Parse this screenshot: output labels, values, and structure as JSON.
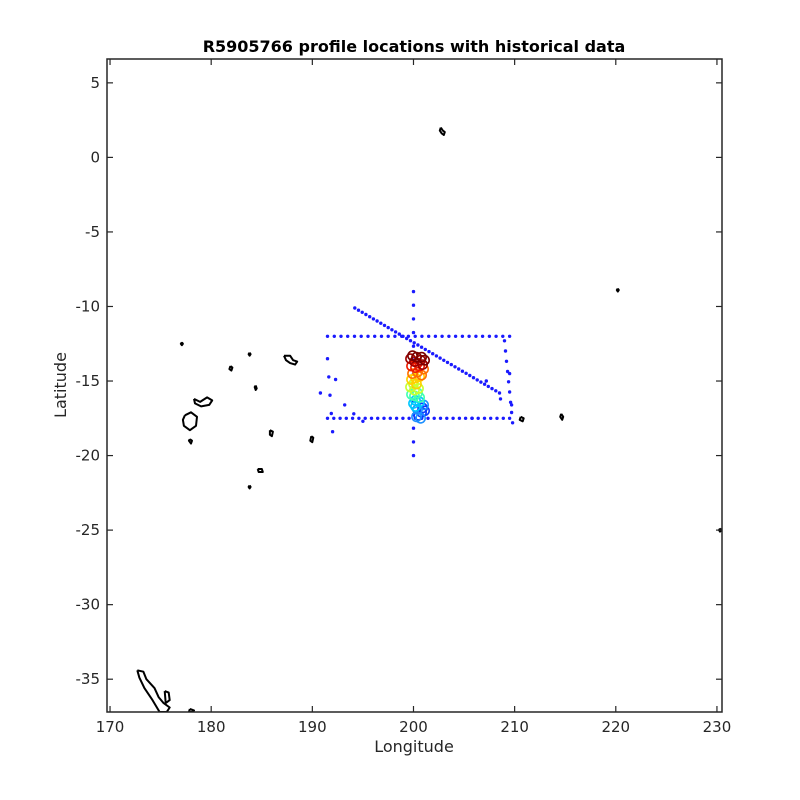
{
  "chart_data": {
    "type": "scatter",
    "title": "R5905766 profile locations with historical data",
    "xlabel": "Longitude",
    "ylabel": "Latitude",
    "xlim": [
      169.7,
      230.5
    ],
    "ylim": [
      -37.2,
      6.6
    ],
    "xticks": [
      170,
      180,
      190,
      200,
      210,
      220,
      230
    ],
    "yticks": [
      5,
      0,
      -5,
      -10,
      -15,
      -20,
      -25,
      -30,
      -35
    ],
    "grid": false,
    "legend": "none",
    "colors": {
      "axes": "#262626",
      "coastline": "#000000",
      "historical": "#1a1aff",
      "profile_ramp": [
        "#0a3cff",
        "#1e90ff",
        "#00c8ff",
        "#40ffb0",
        "#c8ff30",
        "#ffd000",
        "#ff7000",
        "#ee1c00",
        "#a00000",
        "#7a0000"
      ]
    },
    "historical_lines": [
      {
        "name": "",
        "x_range": [
          191.5,
          209.5
        ],
        "y": -12.0,
        "count": 28
      },
      {
        "name": "",
        "x_range": [
          191.5,
          209.5
        ],
        "y": -17.5,
        "count": 30
      },
      {
        "name": "",
        "x": 200.0,
        "y_range": [
          -20.0,
          -9.0
        ],
        "count": 13
      },
      {
        "name": "",
        "start": [
          194.2,
          -10.1
        ],
        "end": [
          208.5,
          -15.8
        ],
        "count": 40
      },
      {
        "name": "",
        "start": [
          209.0,
          -12.3
        ],
        "end": [
          209.8,
          -17.8
        ],
        "count": 9
      },
      {
        "name": "",
        "start": [
          191.5,
          -13.5
        ],
        "end": [
          192.0,
          -18.4
        ],
        "count": 5
      }
    ],
    "historical_points": [
      [
        190.8,
        -15.8
      ],
      [
        193.2,
        -16.6
      ],
      [
        194.1,
        -17.2
      ],
      [
        195.0,
        -17.7
      ],
      [
        192.3,
        -14.9
      ],
      [
        205.8,
        -17.5
      ],
      [
        207.2,
        -15.0
      ],
      [
        209.5,
        -14.5
      ],
      [
        209.7,
        -16.6
      ],
      [
        208.6,
        -16.2
      ]
    ],
    "profiles": [
      [
        200.8,
        -17.1
      ],
      [
        200.9,
        -16.8
      ],
      [
        200.5,
        -17.3
      ],
      [
        201.1,
        -17.0
      ],
      [
        200.3,
        -17.4
      ],
      [
        200.4,
        -16.9
      ],
      [
        200.7,
        -17.5
      ],
      [
        201.0,
        -16.6
      ],
      [
        200.2,
        -16.7
      ],
      [
        200.6,
        -16.4
      ],
      [
        200.0,
        -16.5
      ],
      [
        200.2,
        -16.3
      ],
      [
        200.6,
        -16.1
      ],
      [
        200.1,
        -16.0
      ],
      [
        200.4,
        -15.8
      ],
      [
        199.8,
        -15.9
      ],
      [
        200.1,
        -15.6
      ],
      [
        200.5,
        -15.5
      ],
      [
        199.7,
        -15.4
      ],
      [
        200.0,
        -15.2
      ],
      [
        200.3,
        -15.2
      ],
      [
        199.8,
        -14.9
      ],
      [
        200.2,
        -14.8
      ],
      [
        200.6,
        -14.7
      ],
      [
        199.9,
        -14.5
      ],
      [
        200.4,
        -14.4
      ],
      [
        200.8,
        -14.6
      ],
      [
        201.0,
        -14.2
      ],
      [
        200.2,
        -14.1
      ],
      [
        200.6,
        -14.0
      ],
      [
        199.8,
        -14.0
      ],
      [
        200.4,
        -13.8
      ],
      [
        200.9,
        -13.9
      ],
      [
        200.1,
        -13.7
      ],
      [
        200.7,
        -13.6
      ],
      [
        199.7,
        -13.5
      ],
      [
        200.3,
        -13.4
      ],
      [
        201.1,
        -13.6
      ],
      [
        200.8,
        -13.4
      ],
      [
        199.9,
        -13.3
      ]
    ],
    "coastlines": [
      [
        [
          202.7,
          2.0
        ],
        [
          202.9,
          1.8
        ],
        [
          203.1,
          1.7
        ],
        [
          203.0,
          1.5
        ],
        [
          202.8,
          1.6
        ],
        [
          202.6,
          1.8
        ],
        [
          202.7,
          2.0
        ]
      ],
      [
        [
          220.2,
          -8.8
        ],
        [
          220.3,
          -8.9
        ],
        [
          220.2,
          -9.0
        ],
        [
          220.1,
          -8.9
        ],
        [
          220.2,
          -8.8
        ]
      ],
      [
        [
          177.1,
          -12.4
        ],
        [
          177.2,
          -12.5
        ],
        [
          177.1,
          -12.6
        ],
        [
          177.0,
          -12.5
        ],
        [
          177.1,
          -12.4
        ]
      ],
      [
        [
          183.8,
          -13.1
        ],
        [
          183.9,
          -13.2
        ],
        [
          183.8,
          -13.3
        ],
        [
          183.7,
          -13.2
        ],
        [
          183.8,
          -13.1
        ]
      ],
      [
        [
          187.2,
          -13.3
        ],
        [
          187.8,
          -13.3
        ],
        [
          188.1,
          -13.6
        ],
        [
          188.5,
          -13.7
        ],
        [
          188.3,
          -13.9
        ],
        [
          187.8,
          -13.8
        ],
        [
          187.4,
          -13.6
        ],
        [
          187.2,
          -13.3
        ]
      ],
      [
        [
          181.9,
          -14.0
        ],
        [
          182.1,
          -14.1
        ],
        [
          182.0,
          -14.3
        ],
        [
          181.8,
          -14.2
        ],
        [
          181.9,
          -14.0
        ]
      ],
      [
        [
          184.4,
          -15.3
        ],
        [
          184.5,
          -15.5
        ],
        [
          184.4,
          -15.6
        ],
        [
          184.3,
          -15.4
        ],
        [
          184.4,
          -15.3
        ]
      ],
      [
        [
          178.3,
          -16.2
        ],
        [
          178.9,
          -16.4
        ],
        [
          179.6,
          -16.1
        ],
        [
          180.1,
          -16.3
        ],
        [
          179.8,
          -16.6
        ],
        [
          179.0,
          -16.7
        ],
        [
          178.4,
          -16.5
        ],
        [
          178.3,
          -16.2
        ]
      ],
      [
        [
          177.4,
          -17.3
        ],
        [
          178.0,
          -17.1
        ],
        [
          178.6,
          -17.4
        ],
        [
          178.5,
          -18.0
        ],
        [
          177.9,
          -18.3
        ],
        [
          177.3,
          -18.0
        ],
        [
          177.2,
          -17.6
        ],
        [
          177.4,
          -17.3
        ]
      ],
      [
        [
          177.9,
          -18.9
        ],
        [
          178.1,
          -19.0
        ],
        [
          178.0,
          -19.2
        ],
        [
          177.8,
          -19.0
        ],
        [
          177.9,
          -18.9
        ]
      ],
      [
        [
          185.8,
          -18.3
        ],
        [
          186.1,
          -18.4
        ],
        [
          186.0,
          -18.7
        ],
        [
          185.8,
          -18.6
        ],
        [
          185.8,
          -18.3
        ]
      ],
      [
        [
          189.9,
          -18.7
        ],
        [
          190.1,
          -18.8
        ],
        [
          190.0,
          -19.1
        ],
        [
          189.8,
          -19.0
        ],
        [
          189.9,
          -18.7
        ]
      ],
      [
        [
          184.6,
          -20.9
        ],
        [
          185.0,
          -20.9
        ],
        [
          185.1,
          -21.1
        ],
        [
          184.7,
          -21.1
        ],
        [
          184.6,
          -20.9
        ]
      ],
      [
        [
          183.8,
          -22.0
        ],
        [
          183.9,
          -22.1
        ],
        [
          183.8,
          -22.2
        ],
        [
          183.7,
          -22.1
        ],
        [
          183.8,
          -22.0
        ]
      ],
      [
        [
          210.6,
          -17.4
        ],
        [
          210.9,
          -17.5
        ],
        [
          210.8,
          -17.7
        ],
        [
          210.5,
          -17.6
        ],
        [
          210.6,
          -17.4
        ]
      ],
      [
        [
          214.6,
          -17.2
        ],
        [
          214.8,
          -17.4
        ],
        [
          214.7,
          -17.6
        ],
        [
          214.5,
          -17.4
        ],
        [
          214.6,
          -17.2
        ]
      ],
      [
        [
          230.3,
          -24.9
        ],
        [
          230.5,
          -25.0
        ],
        [
          230.3,
          -25.1
        ],
        [
          230.2,
          -25.0
        ],
        [
          230.3,
          -24.9
        ]
      ],
      [
        [
          172.7,
          -34.4
        ],
        [
          173.3,
          -34.5
        ],
        [
          173.6,
          -35.0
        ],
        [
          174.4,
          -35.6
        ],
        [
          174.8,
          -36.2
        ],
        [
          175.3,
          -36.6
        ],
        [
          175.9,
          -36.9
        ],
        [
          175.6,
          -37.2
        ],
        [
          174.9,
          -37.2
        ],
        [
          174.2,
          -36.4
        ],
        [
          173.4,
          -35.6
        ],
        [
          172.9,
          -34.9
        ],
        [
          172.7,
          -34.4
        ]
      ],
      [
        [
          175.4,
          -35.8
        ],
        [
          175.8,
          -35.9
        ],
        [
          175.9,
          -36.4
        ],
        [
          175.5,
          -36.6
        ],
        [
          175.4,
          -35.8
        ]
      ],
      [
        [
          177.9,
          -37.0
        ],
        [
          178.3,
          -37.1
        ],
        [
          178.2,
          -37.2
        ],
        [
          177.8,
          -37.2
        ],
        [
          177.9,
          -37.0
        ]
      ]
    ]
  }
}
